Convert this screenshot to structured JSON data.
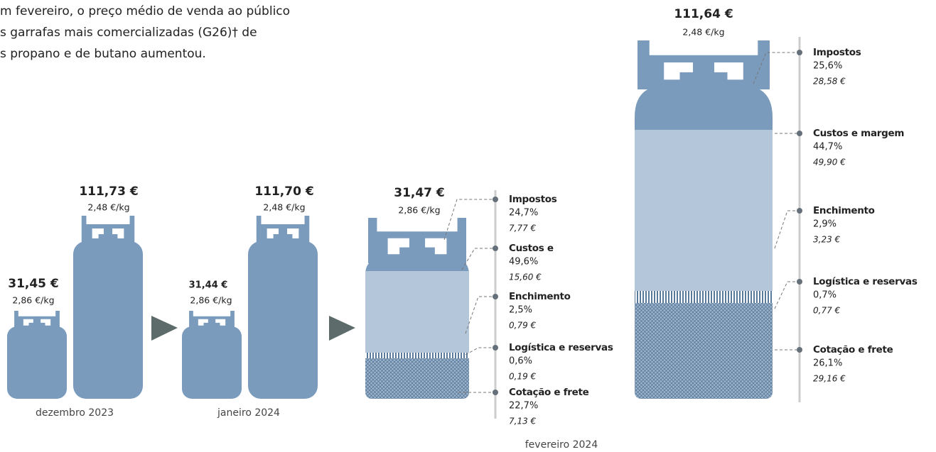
{
  "intro": [
    "m fevereiro, o preço médio de venda ao público",
    "s garrafas mais comercializadas (G26)† de",
    "s propano e de butano aumentou."
  ],
  "months": [
    {
      "label": "dezembro 2023",
      "small": {
        "price": "31,45 €",
        "perkg": "2,86 €/kg"
      },
      "large": {
        "price": "111,73 €",
        "perkg": "2,48 €/kg"
      }
    },
    {
      "label": "janeiro 2024",
      "small": {
        "price": "31,44 €",
        "perkg": "2,86 €/kg"
      },
      "large": {
        "price": "111,70 €",
        "perkg": "2,48 €/kg"
      }
    }
  ],
  "february": {
    "label": "fevereiro 2024",
    "small": {
      "price": "31,47 €",
      "perkg": "2,86 €/kg",
      "components": [
        {
          "name": "Impostos",
          "share": "24,7%",
          "amount": "7,77 €"
        },
        {
          "name": "Custos e",
          "share": "49,6%",
          "amount": "15,60 €"
        },
        {
          "name": "Enchimento",
          "share": "2,5%",
          "amount": "0,79 €"
        },
        {
          "name": "Logística e reservas",
          "share": "0,6%",
          "amount": "0,19 €"
        },
        {
          "name": "Cotação e frete",
          "share": "22,7%",
          "amount": "7,13 €"
        }
      ]
    },
    "large": {
      "price": "111,64 €",
      "perkg": "2,48 €/kg",
      "components": [
        {
          "name": "Impostos",
          "share": "25,6%",
          "amount": "28,58 €"
        },
        {
          "name": "Custos e margem",
          "share": "44,7%",
          "amount": "49,90 €"
        },
        {
          "name": "Enchimento",
          "share": "2,9%",
          "amount": "3,23 €"
        },
        {
          "name": "Logística e reservas",
          "share": "0,7%",
          "amount": "0,77 €"
        },
        {
          "name": "Cotação e frete",
          "share": "26,1%",
          "amount": "29,16 €"
        }
      ]
    }
  }
}
